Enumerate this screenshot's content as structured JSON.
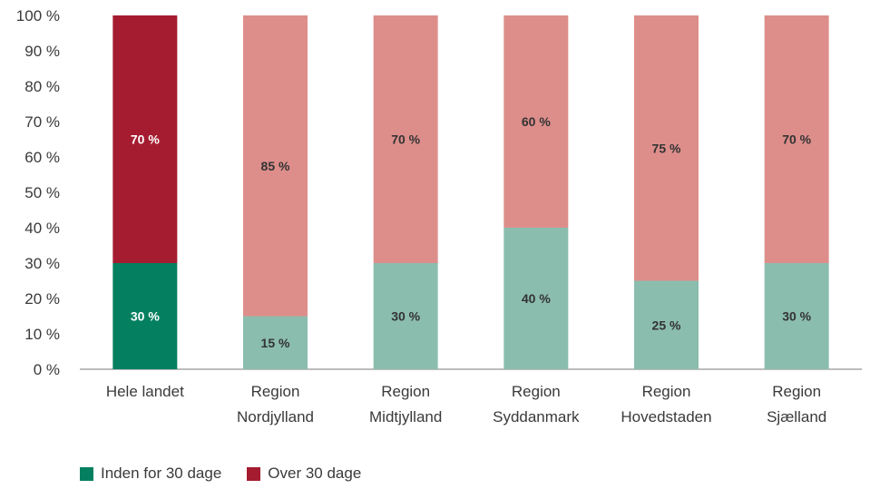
{
  "chart_data": {
    "type": "bar",
    "stacked": true,
    "percent_scale": true,
    "categories": [
      [
        "Hele landet"
      ],
      [
        "Region",
        "Nordjylland"
      ],
      [
        "Region",
        "Midtjylland"
      ],
      [
        "Region",
        "Syddanmark"
      ],
      [
        "Region",
        "Hovedstaden"
      ],
      [
        "Region",
        "Sjælland"
      ]
    ],
    "series": [
      {
        "name": "Inden for 30 dage",
        "values": [
          30,
          15,
          30,
          40,
          25,
          30
        ],
        "labels": [
          "30 %",
          "15 %",
          "30 %",
          "40 %",
          "25 %",
          "30 %"
        ],
        "colors": [
          "#048060",
          "#8bbdae",
          "#8bbdae",
          "#8bbdae",
          "#8bbdae",
          "#8bbdae"
        ],
        "label_colors": [
          "#ffffff",
          "#333333",
          "#333333",
          "#333333",
          "#333333",
          "#333333"
        ]
      },
      {
        "name": "Over 30 dage",
        "values": [
          70,
          85,
          70,
          60,
          75,
          70
        ],
        "labels": [
          "70 %",
          "85 %",
          "70 %",
          "60 %",
          "75 %",
          "70 %"
        ],
        "colors": [
          "#a51c30",
          "#dd8e8b",
          "#dd8e8b",
          "#dd8e8b",
          "#dd8e8b",
          "#dd8e8b"
        ],
        "label_colors": [
          "#ffffff",
          "#333333",
          "#333333",
          "#333333",
          "#333333",
          "#333333"
        ]
      }
    ],
    "ylim": [
      0,
      100
    ],
    "yticks": [
      "0 %",
      "10 %",
      "20 %",
      "30 %",
      "40 %",
      "50 %",
      "60 %",
      "70 %",
      "80 %",
      "90 %",
      "100 %"
    ],
    "title": "",
    "xlabel": "",
    "ylabel": "",
    "grid": false,
    "legend_position": "bottom-left"
  },
  "legend": {
    "items": [
      {
        "label": "Inden for 30 dage",
        "color": "#048060"
      },
      {
        "label": "Over 30 dage",
        "color": "#a51c30"
      }
    ]
  }
}
